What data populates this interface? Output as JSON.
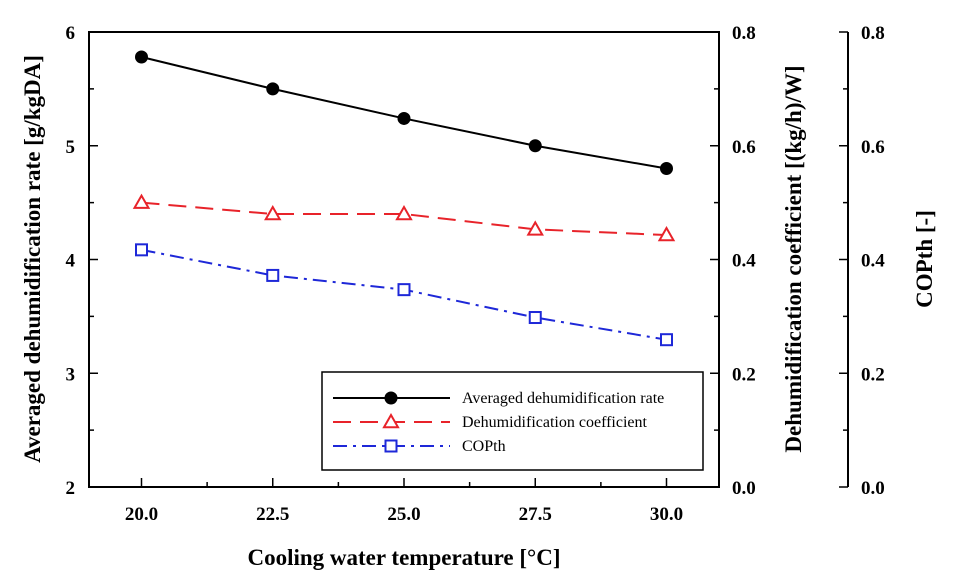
{
  "chart_data": {
    "type": "line",
    "xlabel": "Cooling water temperature [°C]",
    "x": [
      20.0,
      22.5,
      25.0,
      27.5,
      30.0
    ],
    "x_tick_labels": [
      "20.0",
      "22.5",
      "25.0",
      "27.5",
      "30.0"
    ],
    "xlim": [
      19.0,
      31.0
    ],
    "axes": {
      "left": {
        "label": "Averaged dehumidification rate [g/kgDA]",
        "ylim": [
          2,
          6
        ],
        "ticks": [
          "2",
          "3",
          "4",
          "5",
          "6"
        ]
      },
      "right1": {
        "label": "Dehumidification coefficient [(kg/h)/W]",
        "ylim": [
          0.0,
          0.8
        ],
        "ticks": [
          "0.0",
          "0.2",
          "0.4",
          "0.6",
          "0.8"
        ]
      },
      "right2": {
        "label": "COPth [-]",
        "ylim": [
          0.0,
          0.8
        ],
        "ticks": [
          "0.0",
          "0.2",
          "0.4",
          "0.6",
          "0.8"
        ]
      }
    },
    "series": [
      {
        "name": "Averaged dehumidification rate",
        "axis": "left",
        "values": [
          5.78,
          5.5,
          5.24,
          5.0,
          4.8
        ],
        "color": "#000000",
        "marker": "filled-circle",
        "line": "solid"
      },
      {
        "name": "Dehumidification coefficient",
        "axis": "right1",
        "values": [
          0.5,
          0.48,
          0.48,
          0.453,
          0.443
        ],
        "color": "#e8232a",
        "marker": "open-triangle",
        "line": "dashed"
      },
      {
        "name": "COPth",
        "axis": "right2",
        "values": [
          0.417,
          0.372,
          0.347,
          0.298,
          0.259
        ],
        "color": "#1e28d8",
        "marker": "open-square",
        "line": "dash-dot"
      }
    ],
    "legend_position": "bottom-right",
    "grid": false
  }
}
